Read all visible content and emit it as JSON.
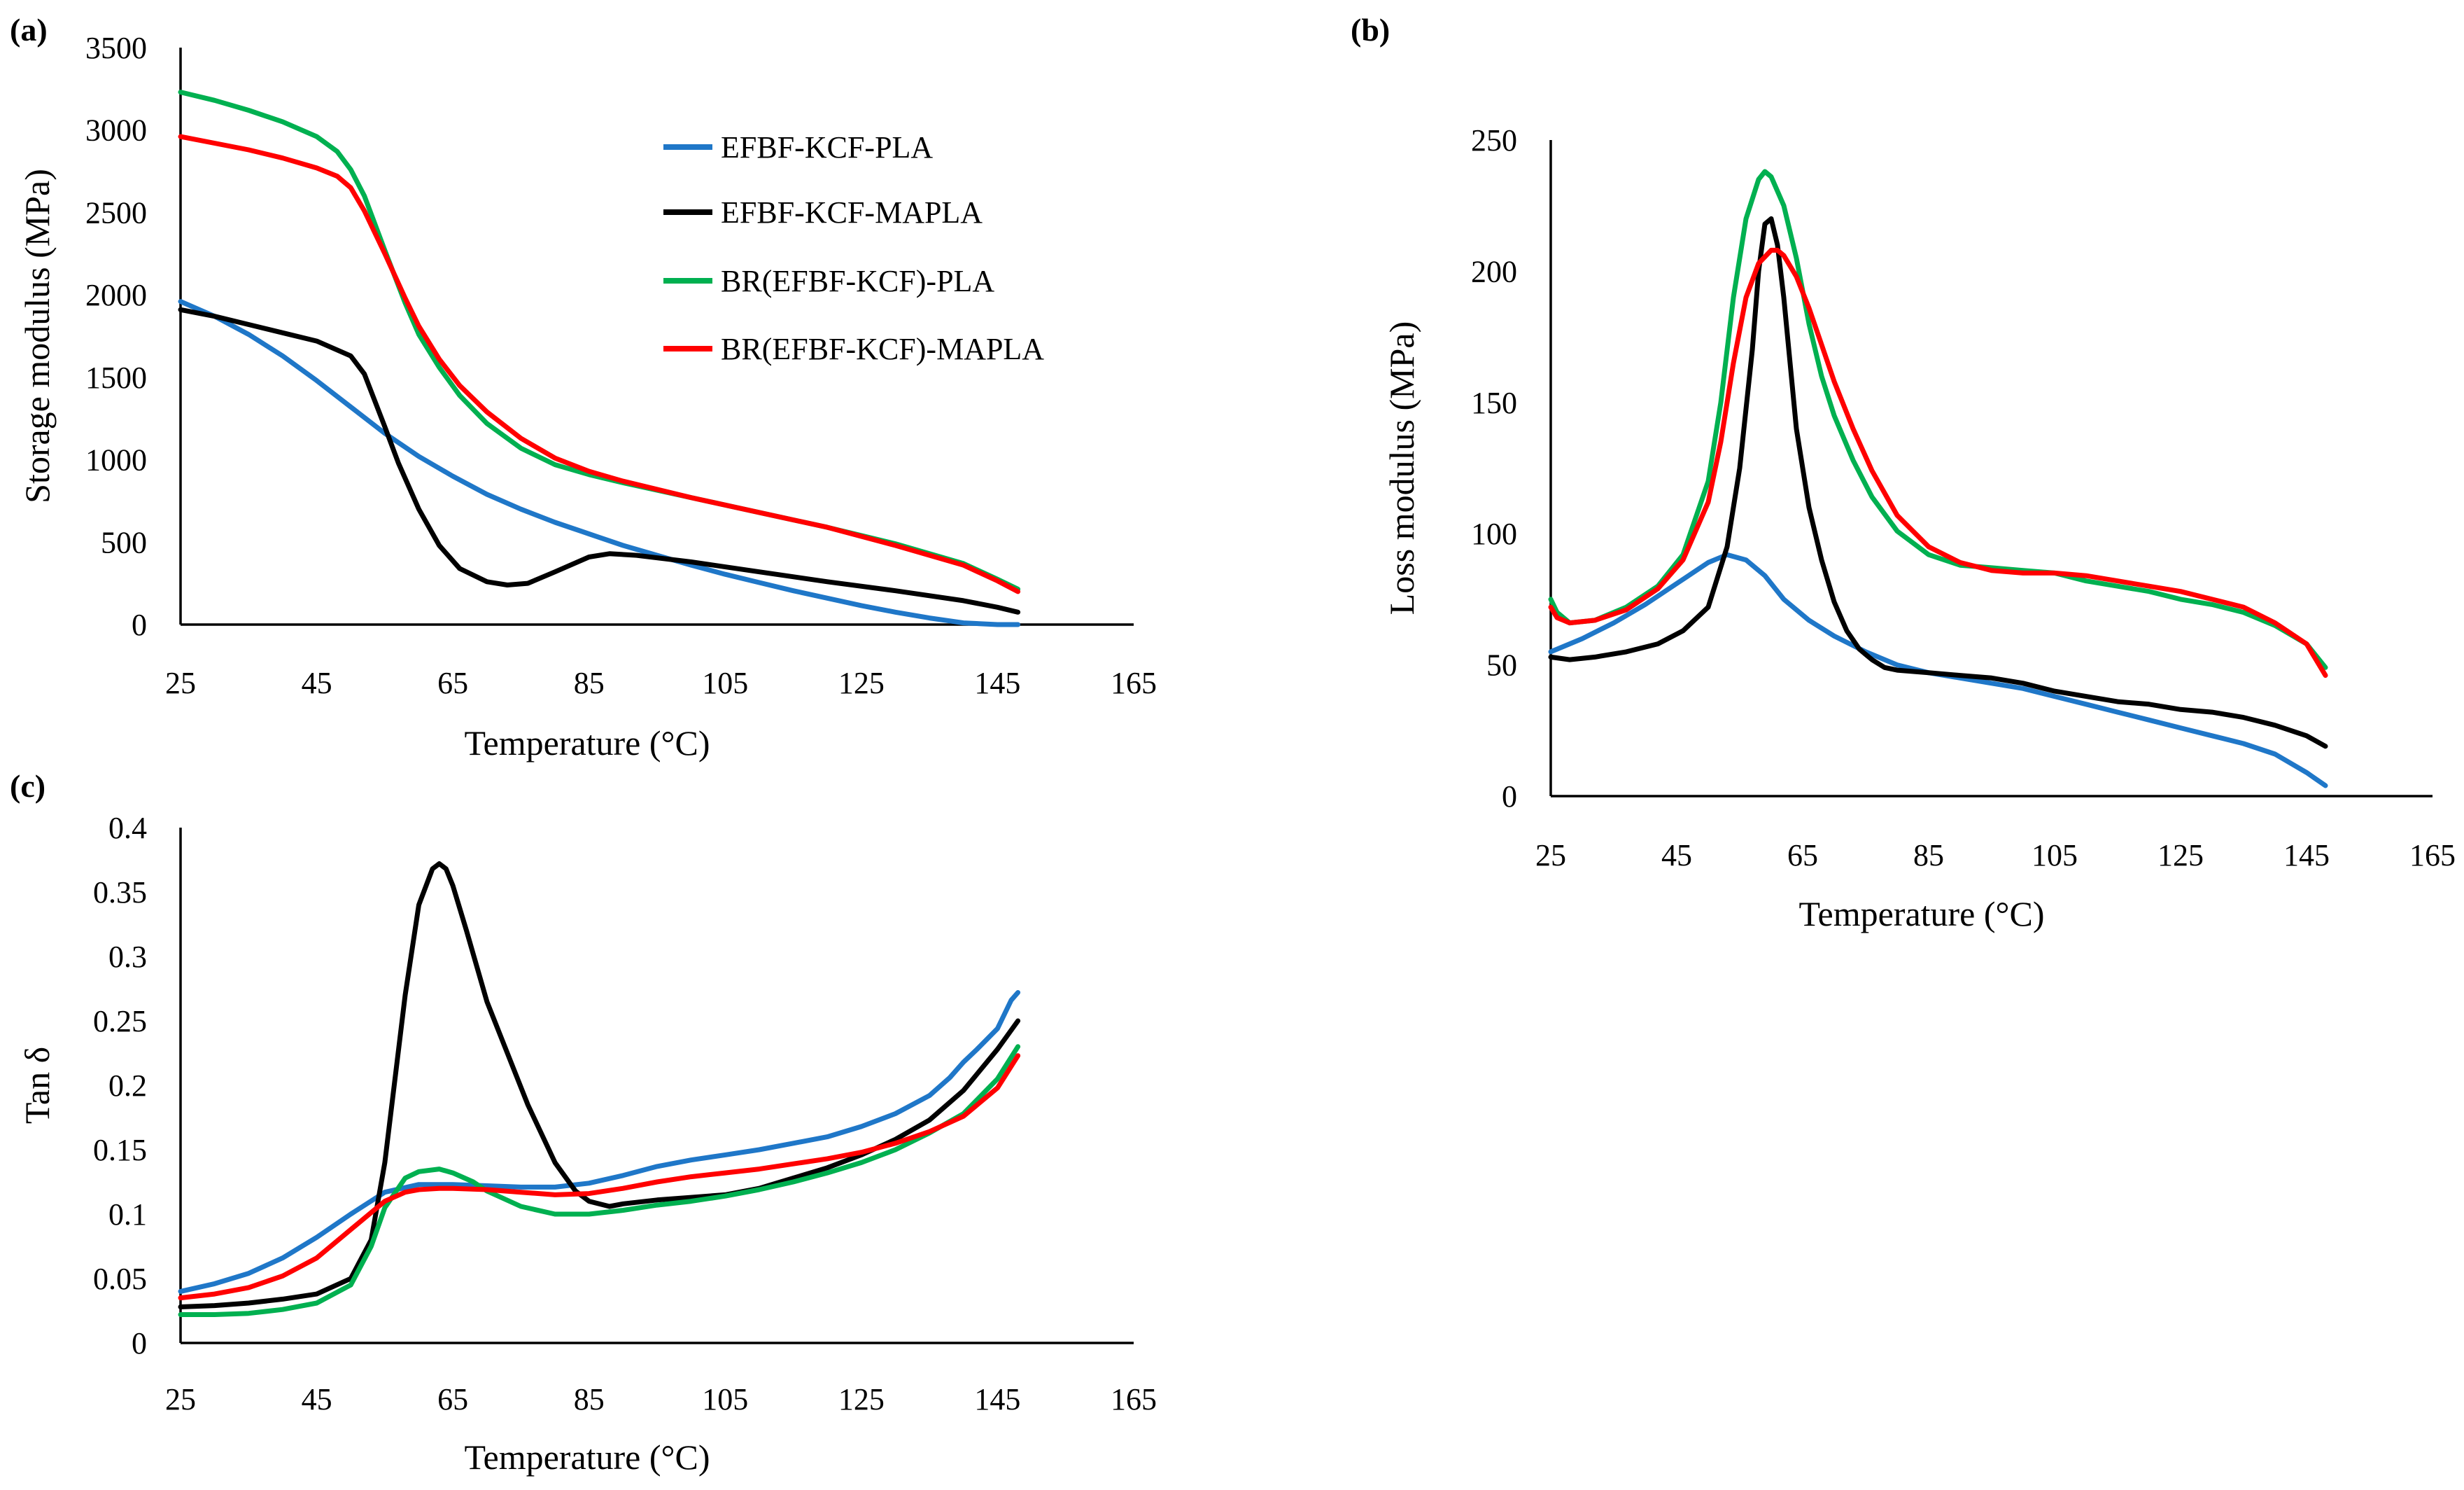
{
  "colors": {
    "EFBF-KCF-PLA": "#1f77c8",
    "EFBF-KCF-MAPLA": "#000000",
    "BR(EFBF-KCF)-PLA": "#00b050",
    "BR(EFBF-KCF)-MAPLA": "#ff0000"
  },
  "legend": [
    "EFBF-KCF-PLA",
    "EFBF-KCF-MAPLA",
    "BR(EFBF-KCF)-PLA",
    "BR(EFBF-KCF)-MAPLA"
  ],
  "chart_data": [
    {
      "id": "a",
      "panel_label": "(a)",
      "type": "line",
      "title": "",
      "xlabel": "Temperature (°C)",
      "ylabel": "Storage modulus (MPa)",
      "xlim": [
        25,
        165
      ],
      "ylim": [
        0,
        3500
      ],
      "xticks": [
        "25",
        "45",
        "65",
        "85",
        "105",
        "125",
        "145",
        "165"
      ],
      "yticks": [
        "0",
        "500",
        "1000",
        "1500",
        "2000",
        "2500",
        "3000",
        "3500"
      ],
      "legend_position": "top-right",
      "series": [
        {
          "name": "EFBF-KCF-PLA",
          "x": [
            25,
            30,
            35,
            40,
            45,
            50,
            55,
            60,
            65,
            70,
            75,
            80,
            85,
            90,
            95,
            100,
            105,
            110,
            115,
            120,
            125,
            130,
            135,
            140,
            145,
            148
          ],
          "y": [
            1960,
            1870,
            1760,
            1630,
            1480,
            1320,
            1160,
            1020,
            900,
            790,
            700,
            620,
            550,
            480,
            420,
            360,
            305,
            255,
            205,
            160,
            115,
            75,
            40,
            10,
            0,
            0
          ]
        },
        {
          "name": "EFBF-KCF-MAPLA",
          "x": [
            25,
            30,
            35,
            40,
            45,
            50,
            52,
            55,
            57,
            60,
            63,
            66,
            70,
            73,
            76,
            80,
            85,
            88,
            92,
            100,
            110,
            120,
            130,
            140,
            145,
            148
          ],
          "y": [
            1910,
            1870,
            1820,
            1770,
            1720,
            1630,
            1520,
            1200,
            980,
            700,
            480,
            340,
            260,
            240,
            250,
            320,
            410,
            430,
            420,
            380,
            320,
            260,
            205,
            145,
            105,
            75
          ]
        },
        {
          "name": "BR(EFBF-KCF)-PLA",
          "x": [
            25,
            30,
            35,
            40,
            45,
            48,
            50,
            52,
            55,
            58,
            60,
            63,
            66,
            70,
            75,
            80,
            85,
            90,
            100,
            110,
            120,
            130,
            140,
            145,
            148
          ],
          "y": [
            3230,
            3180,
            3120,
            3050,
            2960,
            2870,
            2760,
            2600,
            2270,
            1950,
            1760,
            1560,
            1390,
            1220,
            1070,
            970,
            910,
            860,
            770,
            680,
            590,
            490,
            370,
            275,
            215
          ]
        },
        {
          "name": "BR(EFBF-KCF)-MAPLA",
          "x": [
            25,
            30,
            35,
            40,
            45,
            48,
            50,
            52,
            55,
            58,
            60,
            63,
            66,
            70,
            75,
            80,
            85,
            90,
            100,
            110,
            120,
            130,
            140,
            145,
            148
          ],
          "y": [
            2960,
            2920,
            2880,
            2830,
            2770,
            2720,
            2650,
            2510,
            2250,
            1980,
            1810,
            1610,
            1450,
            1290,
            1130,
            1010,
            930,
            870,
            770,
            680,
            590,
            480,
            360,
            265,
            200
          ]
        }
      ]
    },
    {
      "id": "b",
      "panel_label": "(b)",
      "type": "line",
      "title": "",
      "xlabel": "Temperature (°C)",
      "ylabel": "Loss modulus (MPa)",
      "xlim": [
        25,
        165
      ],
      "ylim": [
        0,
        250
      ],
      "xticks": [
        "25",
        "45",
        "65",
        "85",
        "105",
        "125",
        "145",
        "165"
      ],
      "yticks": [
        "0",
        "50",
        "100",
        "150",
        "200",
        "250"
      ],
      "series": [
        {
          "name": "EFBF-KCF-PLA",
          "x": [
            25,
            30,
            35,
            40,
            45,
            50,
            53,
            56,
            59,
            62,
            66,
            70,
            75,
            80,
            85,
            90,
            95,
            100,
            105,
            110,
            115,
            120,
            125,
            130,
            135,
            140,
            145,
            148
          ],
          "y": [
            55,
            60,
            66,
            73,
            81,
            89,
            92,
            90,
            84,
            75,
            67,
            61,
            55,
            50,
            47,
            45,
            43,
            41,
            38,
            35,
            32,
            29,
            26,
            23,
            20,
            16,
            9,
            4
          ]
        },
        {
          "name": "EFBF-KCF-MAPLA",
          "x": [
            25,
            28,
            32,
            37,
            42,
            46,
            50,
            53,
            55,
            57,
            58,
            59,
            60,
            61,
            62,
            63,
            64,
            66,
            68,
            70,
            72,
            74,
            76,
            78,
            80,
            85,
            90,
            95,
            100,
            105,
            110,
            115,
            120,
            125,
            130,
            135,
            140,
            145,
            148
          ],
          "y": [
            53,
            52,
            53,
            55,
            58,
            63,
            72,
            95,
            125,
            170,
            200,
            218,
            220,
            210,
            190,
            165,
            140,
            110,
            90,
            74,
            63,
            56,
            52,
            49,
            48,
            47,
            46,
            45,
            43,
            40,
            38,
            36,
            35,
            33,
            32,
            30,
            27,
            23,
            19
          ]
        },
        {
          "name": "BR(EFBF-KCF)-PLA",
          "x": [
            25,
            26,
            28,
            32,
            37,
            42,
            46,
            50,
            52,
            54,
            56,
            58,
            59,
            60,
            62,
            64,
            66,
            68,
            70,
            73,
            76,
            80,
            85,
            90,
            95,
            100,
            105,
            110,
            115,
            120,
            125,
            130,
            135,
            140,
            145,
            148
          ],
          "y": [
            75,
            70,
            66,
            67,
            72,
            80,
            92,
            120,
            150,
            190,
            220,
            235,
            238,
            236,
            225,
            205,
            180,
            160,
            145,
            128,
            114,
            101,
            92,
            88,
            87,
            86,
            85,
            82,
            80,
            78,
            75,
            73,
            70,
            65,
            58,
            49
          ]
        },
        {
          "name": "BR(EFBF-KCF)-MAPLA",
          "x": [
            25,
            26,
            28,
            32,
            37,
            42,
            46,
            50,
            52,
            54,
            56,
            58,
            60,
            61,
            62,
            64,
            66,
            68,
            70,
            73,
            76,
            80,
            85,
            90,
            95,
            100,
            105,
            110,
            115,
            120,
            125,
            130,
            135,
            140,
            145,
            148
          ],
          "y": [
            72,
            68,
            66,
            67,
            71,
            79,
            90,
            112,
            135,
            165,
            190,
            203,
            208,
            208,
            206,
            198,
            186,
            172,
            158,
            140,
            124,
            107,
            95,
            89,
            86,
            85,
            85,
            84,
            82,
            80,
            78,
            75,
            72,
            66,
            58,
            46
          ]
        }
      ]
    },
    {
      "id": "c",
      "panel_label": "(c)",
      "type": "line",
      "title": "",
      "xlabel": "Temperature (°C)",
      "ylabel": "Tan δ",
      "xlim": [
        25,
        165
      ],
      "ylim": [
        0,
        0.4
      ],
      "xticks": [
        "25",
        "45",
        "65",
        "85",
        "105",
        "125",
        "145",
        "165"
      ],
      "yticks": [
        "0",
        "0.05",
        "0.1",
        "0.15",
        "0.2",
        "0.25",
        "0.3",
        "0.35",
        "0.4"
      ],
      "series": [
        {
          "name": "EFBF-KCF-PLA",
          "x": [
            25,
            30,
            35,
            40,
            45,
            50,
            55,
            60,
            65,
            70,
            75,
            80,
            85,
            90,
            95,
            100,
            105,
            110,
            115,
            120,
            125,
            130,
            135,
            138,
            140,
            142,
            145,
            147,
            148
          ],
          "y": [
            0.04,
            0.046,
            0.054,
            0.066,
            0.082,
            0.1,
            0.117,
            0.123,
            0.123,
            0.122,
            0.121,
            0.121,
            0.124,
            0.13,
            0.137,
            0.142,
            0.146,
            0.15,
            0.155,
            0.16,
            0.168,
            0.178,
            0.192,
            0.206,
            0.218,
            0.228,
            0.244,
            0.266,
            0.272
          ]
        },
        {
          "name": "EFBF-KCF-MAPLA",
          "x": [
            25,
            30,
            35,
            40,
            45,
            50,
            53,
            55,
            58,
            60,
            62,
            63,
            64,
            65,
            67,
            70,
            73,
            76,
            80,
            83,
            85,
            88,
            90,
            95,
            100,
            105,
            110,
            115,
            120,
            125,
            130,
            135,
            140,
            145,
            148
          ],
          "y": [
            0.028,
            0.029,
            0.031,
            0.034,
            0.038,
            0.05,
            0.08,
            0.14,
            0.27,
            0.34,
            0.368,
            0.372,
            0.368,
            0.355,
            0.32,
            0.265,
            0.225,
            0.185,
            0.14,
            0.118,
            0.11,
            0.106,
            0.108,
            0.111,
            0.113,
            0.115,
            0.12,
            0.128,
            0.136,
            0.146,
            0.158,
            0.173,
            0.196,
            0.228,
            0.25
          ]
        },
        {
          "name": "BR(EFBF-KCF)-PLA",
          "x": [
            25,
            30,
            35,
            40,
            45,
            50,
            53,
            55,
            58,
            60,
            63,
            65,
            68,
            70,
            75,
            80,
            85,
            90,
            95,
            100,
            105,
            110,
            115,
            120,
            125,
            130,
            135,
            140,
            145,
            148
          ],
          "y": [
            0.022,
            0.022,
            0.023,
            0.026,
            0.031,
            0.045,
            0.075,
            0.105,
            0.128,
            0.133,
            0.135,
            0.132,
            0.125,
            0.118,
            0.106,
            0.1,
            0.1,
            0.103,
            0.107,
            0.11,
            0.114,
            0.119,
            0.125,
            0.132,
            0.14,
            0.15,
            0.163,
            0.178,
            0.205,
            0.23
          ]
        },
        {
          "name": "BR(EFBF-KCF)-MAPLA",
          "x": [
            25,
            30,
            35,
            40,
            45,
            50,
            55,
            58,
            60,
            63,
            65,
            70,
            75,
            80,
            85,
            90,
            95,
            100,
            105,
            110,
            115,
            120,
            125,
            130,
            135,
            140,
            145,
            148
          ],
          "y": [
            0.035,
            0.038,
            0.043,
            0.052,
            0.066,
            0.088,
            0.11,
            0.117,
            0.119,
            0.12,
            0.12,
            0.119,
            0.117,
            0.115,
            0.116,
            0.12,
            0.125,
            0.129,
            0.132,
            0.135,
            0.139,
            0.143,
            0.148,
            0.155,
            0.164,
            0.176,
            0.198,
            0.223
          ]
        }
      ]
    }
  ]
}
